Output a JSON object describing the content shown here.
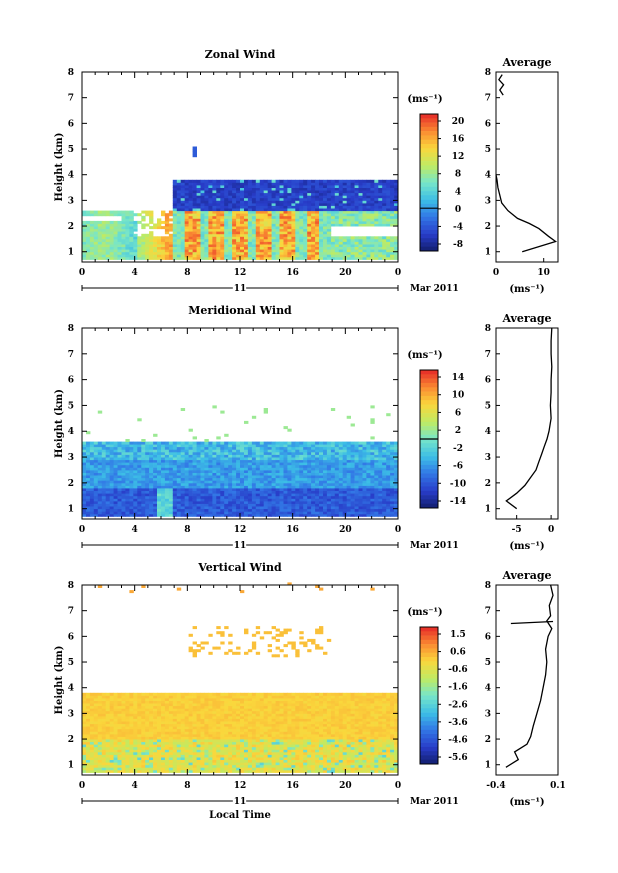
{
  "chart_data": [
    {
      "type": "heatmap",
      "title": "Zonal Wind",
      "ylabel": "Height (km)",
      "unit": "(ms⁻¹)",
      "xticks": [
        "0",
        "4",
        "8",
        "12",
        "16",
        "20",
        "0"
      ],
      "xlim": [
        0,
        24
      ],
      "ylim": [
        0.6,
        8.0
      ],
      "yticks": [
        "1",
        "2",
        "3",
        "4",
        "5",
        "6",
        "7",
        "8"
      ],
      "day_label": "11",
      "month_label": "Mar 2011",
      "colorbar": {
        "ticks": [
          "20",
          "16",
          "12",
          "8",
          "4",
          "0",
          "-4",
          "-8"
        ],
        "vmin": -10,
        "vmax": 22,
        "contour": 0
      },
      "average": {
        "title": "Average",
        "xlim": [
          0,
          13
        ],
        "xticks": [
          "0",
          "10"
        ],
        "xunit": "(ms⁻¹)",
        "profile": [
          [
            1.0,
            5.5
          ],
          [
            1.2,
            9
          ],
          [
            1.4,
            12.5
          ],
          [
            1.6,
            11
          ],
          [
            1.9,
            9
          ],
          [
            2.1,
            7
          ],
          [
            2.3,
            4.5
          ],
          [
            2.6,
            2.5
          ],
          [
            2.9,
            1.2
          ],
          [
            3.2,
            0.8
          ],
          [
            3.5,
            0.4
          ],
          [
            3.8,
            0.2
          ],
          [
            4.0,
            0.0
          ]
        ],
        "profile_top": [
          [
            7.1,
            1.5
          ],
          [
            7.3,
            0.8
          ],
          [
            7.5,
            1.6
          ],
          [
            7.7,
            0.6
          ],
          [
            7.9,
            1.3
          ]
        ]
      }
    },
    {
      "type": "heatmap",
      "title": "Meridional Wind",
      "ylabel": "Height (km)",
      "unit": "(ms⁻¹)",
      "xticks": [
        "0",
        "4",
        "8",
        "12",
        "16",
        "20",
        "0"
      ],
      "xlim": [
        0,
        24
      ],
      "ylim": [
        0.6,
        8.0
      ],
      "yticks": [
        "1",
        "2",
        "3",
        "4",
        "5",
        "6",
        "7",
        "8"
      ],
      "day_label": "11",
      "month_label": "Mar 2011",
      "colorbar": {
        "ticks": [
          "14",
          "10",
          "6",
          "2",
          "-2",
          "-6",
          "-10",
          "-14"
        ],
        "vmin": -16,
        "vmax": 16,
        "contour": 0
      },
      "average": {
        "title": "Average",
        "xlim": [
          -8,
          1
        ],
        "xticks": [
          "-5",
          "0"
        ],
        "xunit": "(ms⁻¹)",
        "profile": [
          [
            1.0,
            -5.0
          ],
          [
            1.3,
            -6.5
          ],
          [
            1.6,
            -5.0
          ],
          [
            1.9,
            -3.8
          ],
          [
            2.2,
            -3.0
          ],
          [
            2.5,
            -2.2
          ],
          [
            2.8,
            -1.8
          ],
          [
            3.1,
            -1.4
          ],
          [
            3.4,
            -1.0
          ],
          [
            3.7,
            -0.6
          ],
          [
            4.0,
            -0.3
          ],
          [
            4.5,
            0.0
          ],
          [
            5.0,
            -0.1
          ],
          [
            5.5,
            0.0
          ],
          [
            6.0,
            0.0
          ],
          [
            6.5,
            0.1
          ],
          [
            7.0,
            0.0
          ],
          [
            7.5,
            0.0
          ],
          [
            8.0,
            0.1
          ]
        ]
      }
    },
    {
      "type": "heatmap",
      "title": "Vertical Wind",
      "ylabel": "Height (km)",
      "xlabel": "Local Time",
      "unit": "(ms⁻¹)",
      "xticks": [
        "0",
        "4",
        "8",
        "12",
        "16",
        "20",
        "0"
      ],
      "xlim": [
        0,
        24
      ],
      "ylim": [
        0.6,
        8.0
      ],
      "yticks": [
        "1",
        "2",
        "3",
        "4",
        "5",
        "6",
        "7",
        "8"
      ],
      "day_label": "11",
      "month_label": "Mar 2011",
      "colorbar": {
        "ticks": [
          "1.5",
          "0.6",
          "-0.6",
          "-1.6",
          "-2.6",
          "-3.6",
          "-4.6",
          "-5.6"
        ],
        "vmin": -6.0,
        "vmax": 2.0
      },
      "average": {
        "title": "Average",
        "xlim": [
          -0.4,
          0.1
        ],
        "xticks": [
          "-0.4",
          "0.1"
        ],
        "xunit": "(ms⁻¹)",
        "profile": [
          [
            0.9,
            -0.32
          ],
          [
            1.2,
            -0.22
          ],
          [
            1.5,
            -0.25
          ],
          [
            1.8,
            -0.15
          ],
          [
            2.1,
            -0.12
          ],
          [
            2.5,
            -0.1
          ],
          [
            3.0,
            -0.07
          ],
          [
            3.5,
            -0.04
          ],
          [
            4.0,
            -0.02
          ],
          [
            4.5,
            0.0
          ],
          [
            5.0,
            0.01
          ],
          [
            5.5,
            0.0
          ],
          [
            6.0,
            0.02
          ],
          [
            6.3,
            0.05
          ],
          [
            6.6,
            0.01
          ],
          [
            6.8,
            0.04
          ],
          [
            7.2,
            0.03
          ],
          [
            7.6,
            0.06
          ],
          [
            8.0,
            0.04
          ]
        ],
        "spike": {
          "height": 6.5,
          "from": -0.28,
          "to": 0.06
        }
      }
    }
  ]
}
